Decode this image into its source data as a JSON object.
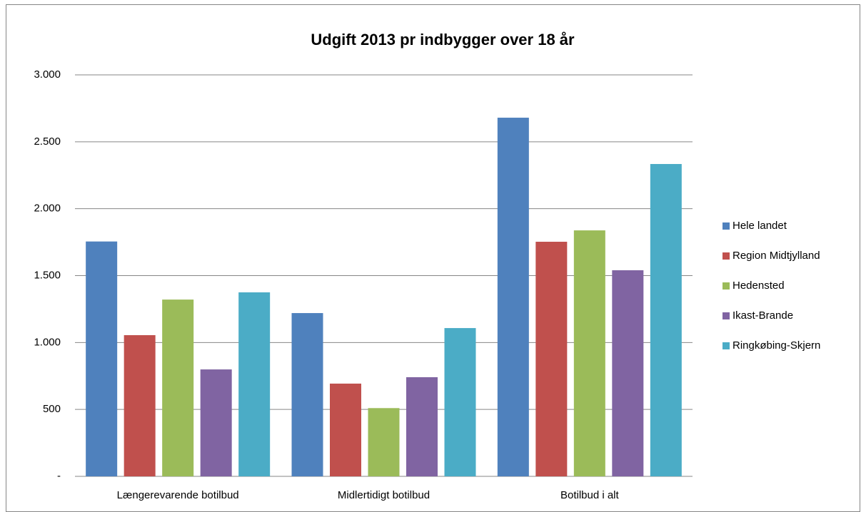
{
  "chart_data": {
    "type": "bar",
    "title": "Udgift 2013 pr indbygger over 18 år",
    "categories": [
      "Længerevarende botilbud",
      "Midlertidigt botilbud",
      "Botilbud i alt"
    ],
    "series": [
      {
        "name": "Hele landet",
        "color": "#4f81bd",
        "values": [
          1755,
          1220,
          2680
        ]
      },
      {
        "name": "Region Midtjylland",
        "color": "#c0504d",
        "values": [
          1055,
          693,
          1753
        ]
      },
      {
        "name": "Hedensted",
        "color": "#9bbb59",
        "values": [
          1321,
          510,
          1838
        ]
      },
      {
        "name": "Ikast-Brande",
        "color": "#8064a2",
        "values": [
          799,
          741,
          1540
        ]
      },
      {
        "name": "Ringkøbing-Skjern",
        "color": "#4bacc6",
        "values": [
          1375,
          1108,
          2334
        ]
      }
    ],
    "ylim": [
      0,
      3000
    ],
    "yticks": [
      {
        "value": 0,
        "label": "-"
      },
      500,
      {
        "value": 1000,
        "label": "1.000"
      },
      {
        "value": 1500,
        "label": "1.500"
      },
      {
        "value": 2000,
        "label": "2.000"
      },
      {
        "value": 2500,
        "label": "2.500"
      },
      {
        "value": 3000,
        "label": "3.000"
      }
    ],
    "grid": true,
    "legend": "right"
  }
}
